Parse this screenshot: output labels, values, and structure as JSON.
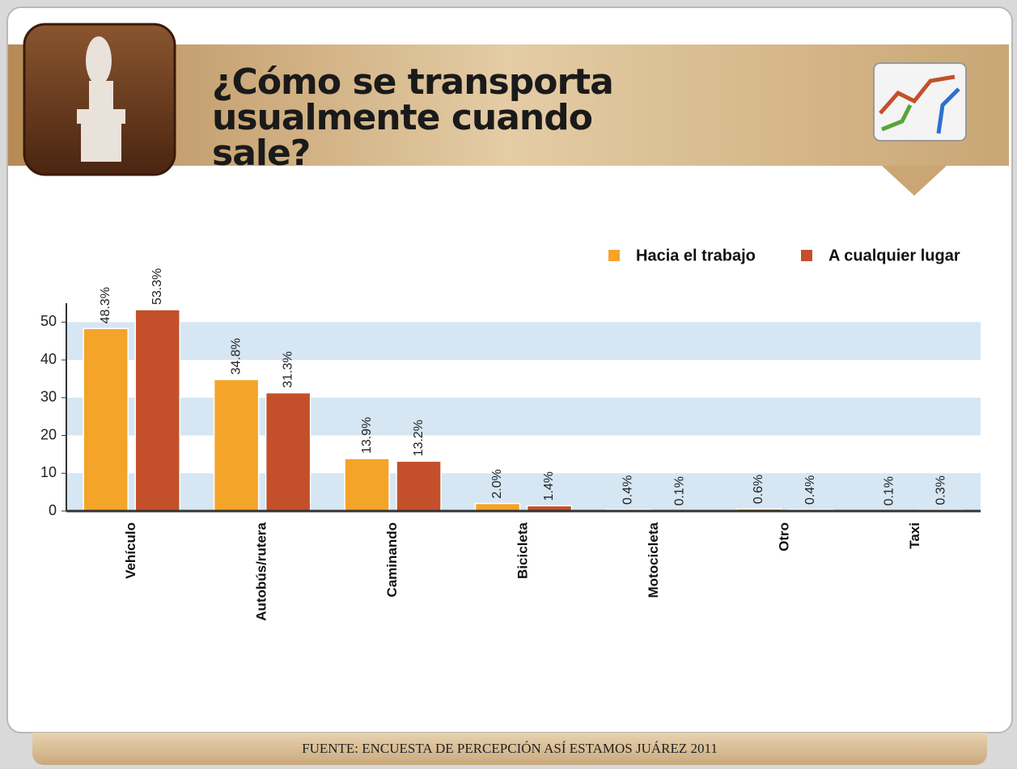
{
  "chart_data": {
    "type": "bar",
    "title": "¿Cómo se transporta usualmente cuando sale?",
    "source": "FUENTE: ENCUESTA DE PERCEPCIÓN ASÍ ESTAMOS JUÁREZ 2011",
    "categories": [
      "Vehículo",
      "Autobús/rutera",
      "Caminando",
      "Bicicleta",
      "Motocicleta",
      "Otro",
      "Taxi"
    ],
    "series": [
      {
        "name": "Hacia el trabajo",
        "color": "#f4a428",
        "values": [
          48.3,
          34.8,
          13.9,
          2.0,
          0.4,
          0.6,
          0.1
        ],
        "value_labels": [
          "48.3%",
          "34.8%",
          "13.9%",
          "2.0%",
          "0.4%",
          "0.6%",
          "0.1%"
        ]
      },
      {
        "name": "A cualquier lugar",
        "color": "#c3502b",
        "values": [
          53.3,
          31.3,
          13.2,
          1.4,
          0.1,
          0.4,
          0.3
        ],
        "value_labels": [
          "53.3%",
          "31.3%",
          "13.2%",
          "1.4%",
          "0.1%",
          "0.4%",
          "0.3%"
        ]
      }
    ],
    "ylim": [
      0,
      55
    ],
    "yticks": [
      0,
      10,
      20,
      30,
      40,
      50
    ],
    "grid": "bands",
    "legend": "top-right"
  }
}
